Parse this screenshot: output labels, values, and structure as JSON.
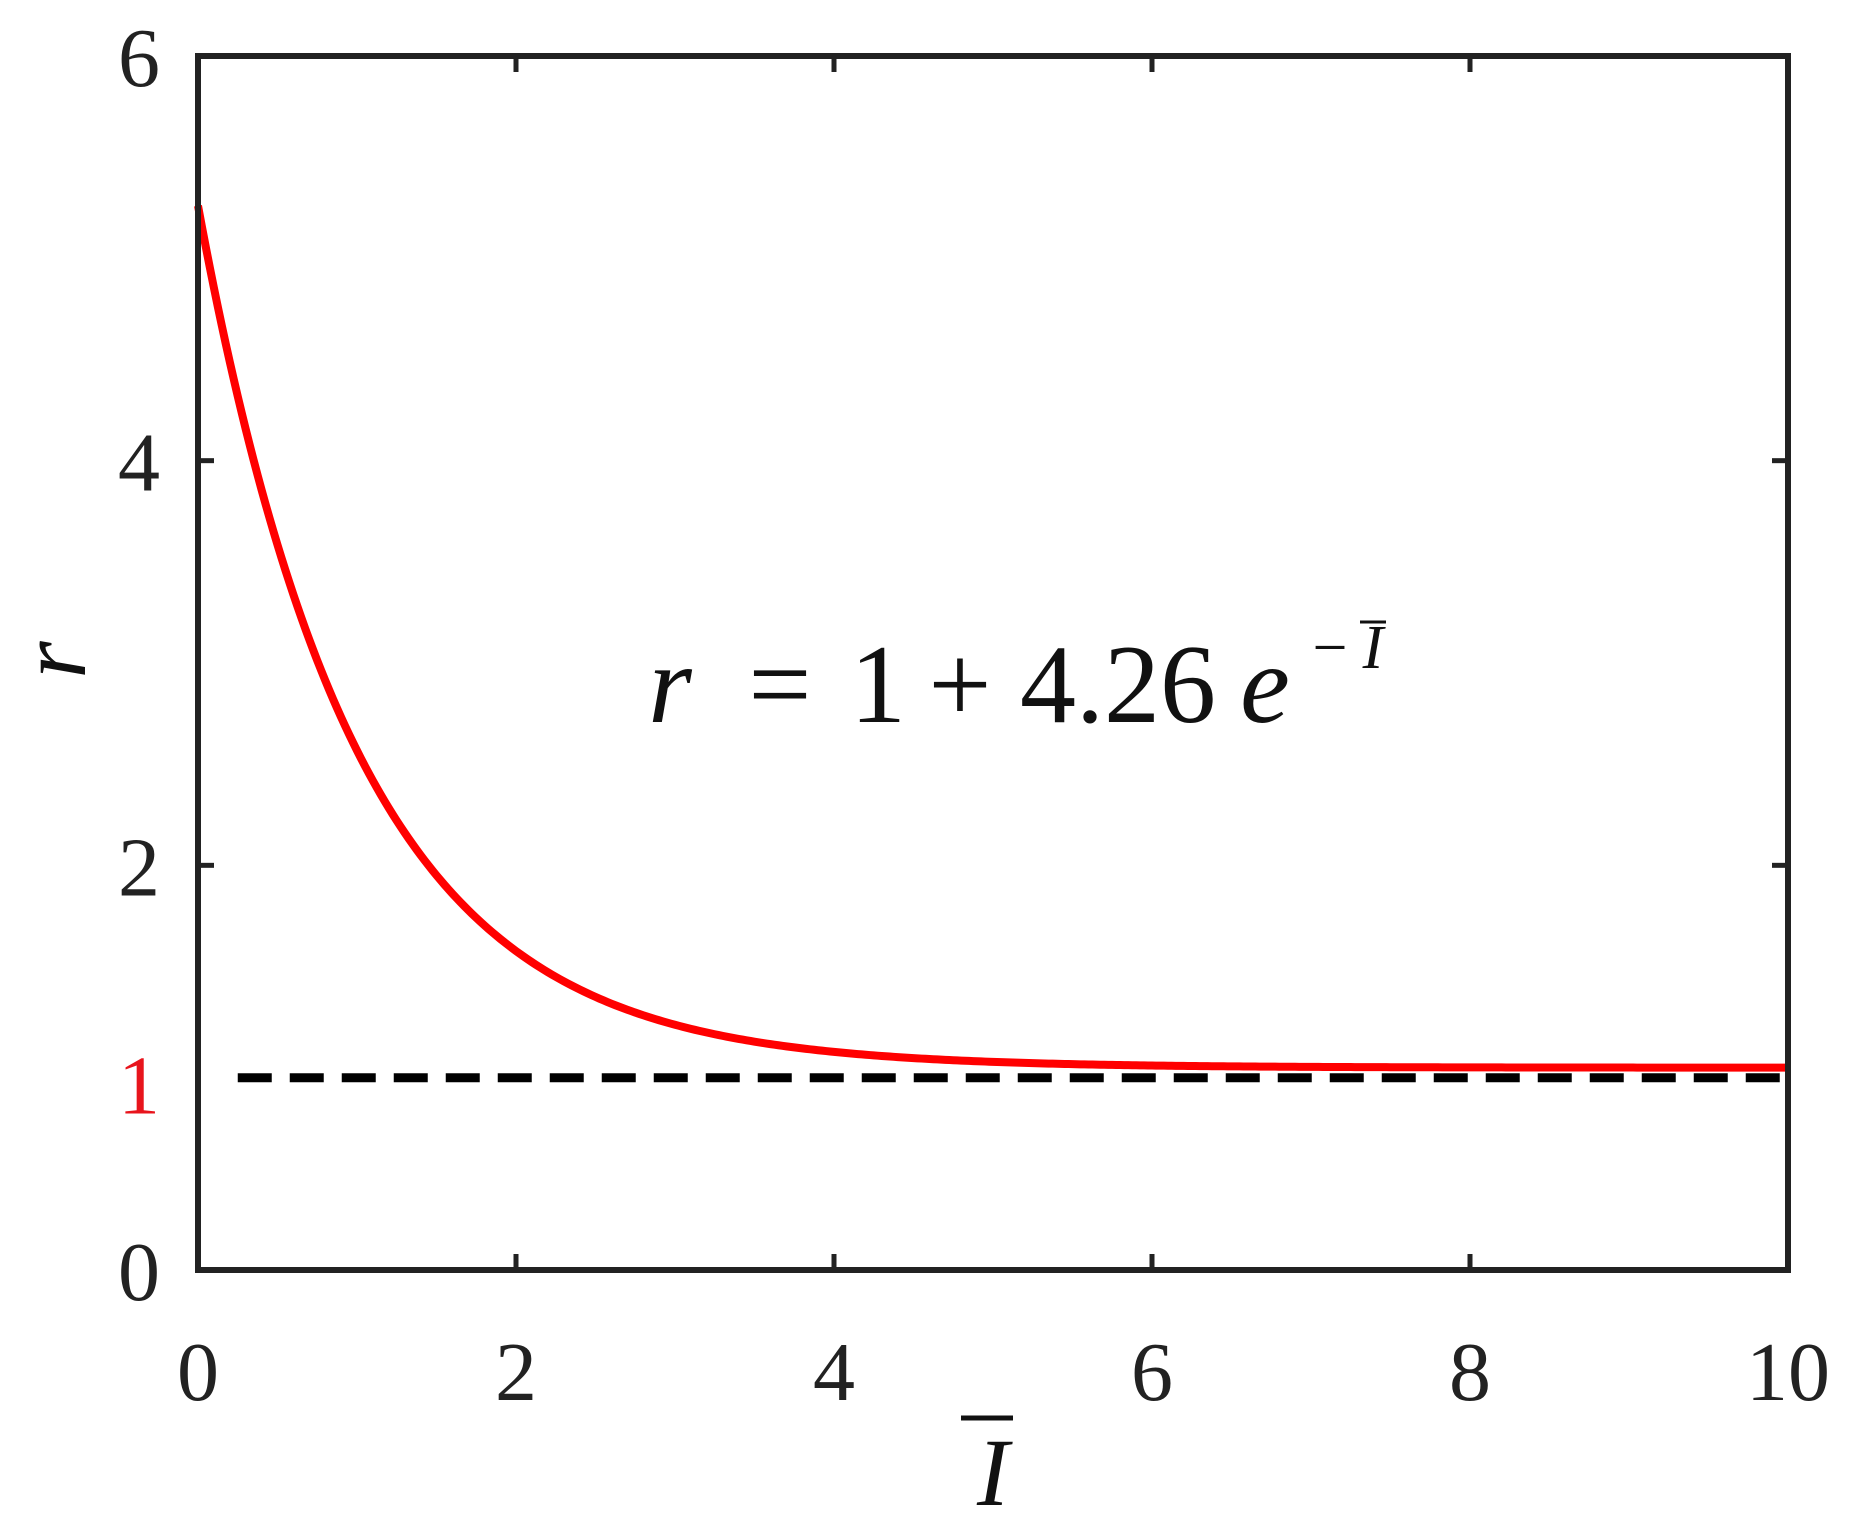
{
  "chart_data": {
    "type": "line",
    "xlabel": "I",
    "ylabel": "r",
    "xlim": [
      0,
      10
    ],
    "ylim": [
      0,
      6
    ],
    "xticks": [
      0,
      2,
      4,
      6,
      8,
      10
    ],
    "yticks": [
      0,
      2,
      4,
      6
    ],
    "highlight_ytick": {
      "value": 1,
      "label": "1",
      "color": "#e8141c"
    },
    "grid": false,
    "box": true,
    "series": [
      {
        "style": "solid",
        "color": "#ff0000",
        "formula": {
          "base": 1,
          "coefficient": 4.26
        },
        "x": [
          0,
          0.25,
          0.5,
          0.75,
          1,
          1.5,
          2,
          2.5,
          3,
          3.5,
          4,
          5,
          6,
          7,
          8,
          9,
          10
        ],
        "y": [
          5.26,
          4.32,
          3.58,
          3.01,
          2.57,
          1.95,
          1.58,
          1.35,
          1.21,
          1.13,
          1.08,
          1.03,
          1.01,
          1.0,
          1.0,
          1.0,
          1.0
        ]
      },
      {
        "style": "dashed",
        "color": "#000000",
        "x": [
          0.25,
          10
        ],
        "y": [
          0.95,
          0.95
        ]
      }
    ],
    "annotation": {
      "lhs": "r",
      "equals": "=",
      "one": "1",
      "plus": "+",
      "coef": "4.26",
      "base": "e",
      "exp_sign": "−",
      "exp_var": "I"
    }
  }
}
